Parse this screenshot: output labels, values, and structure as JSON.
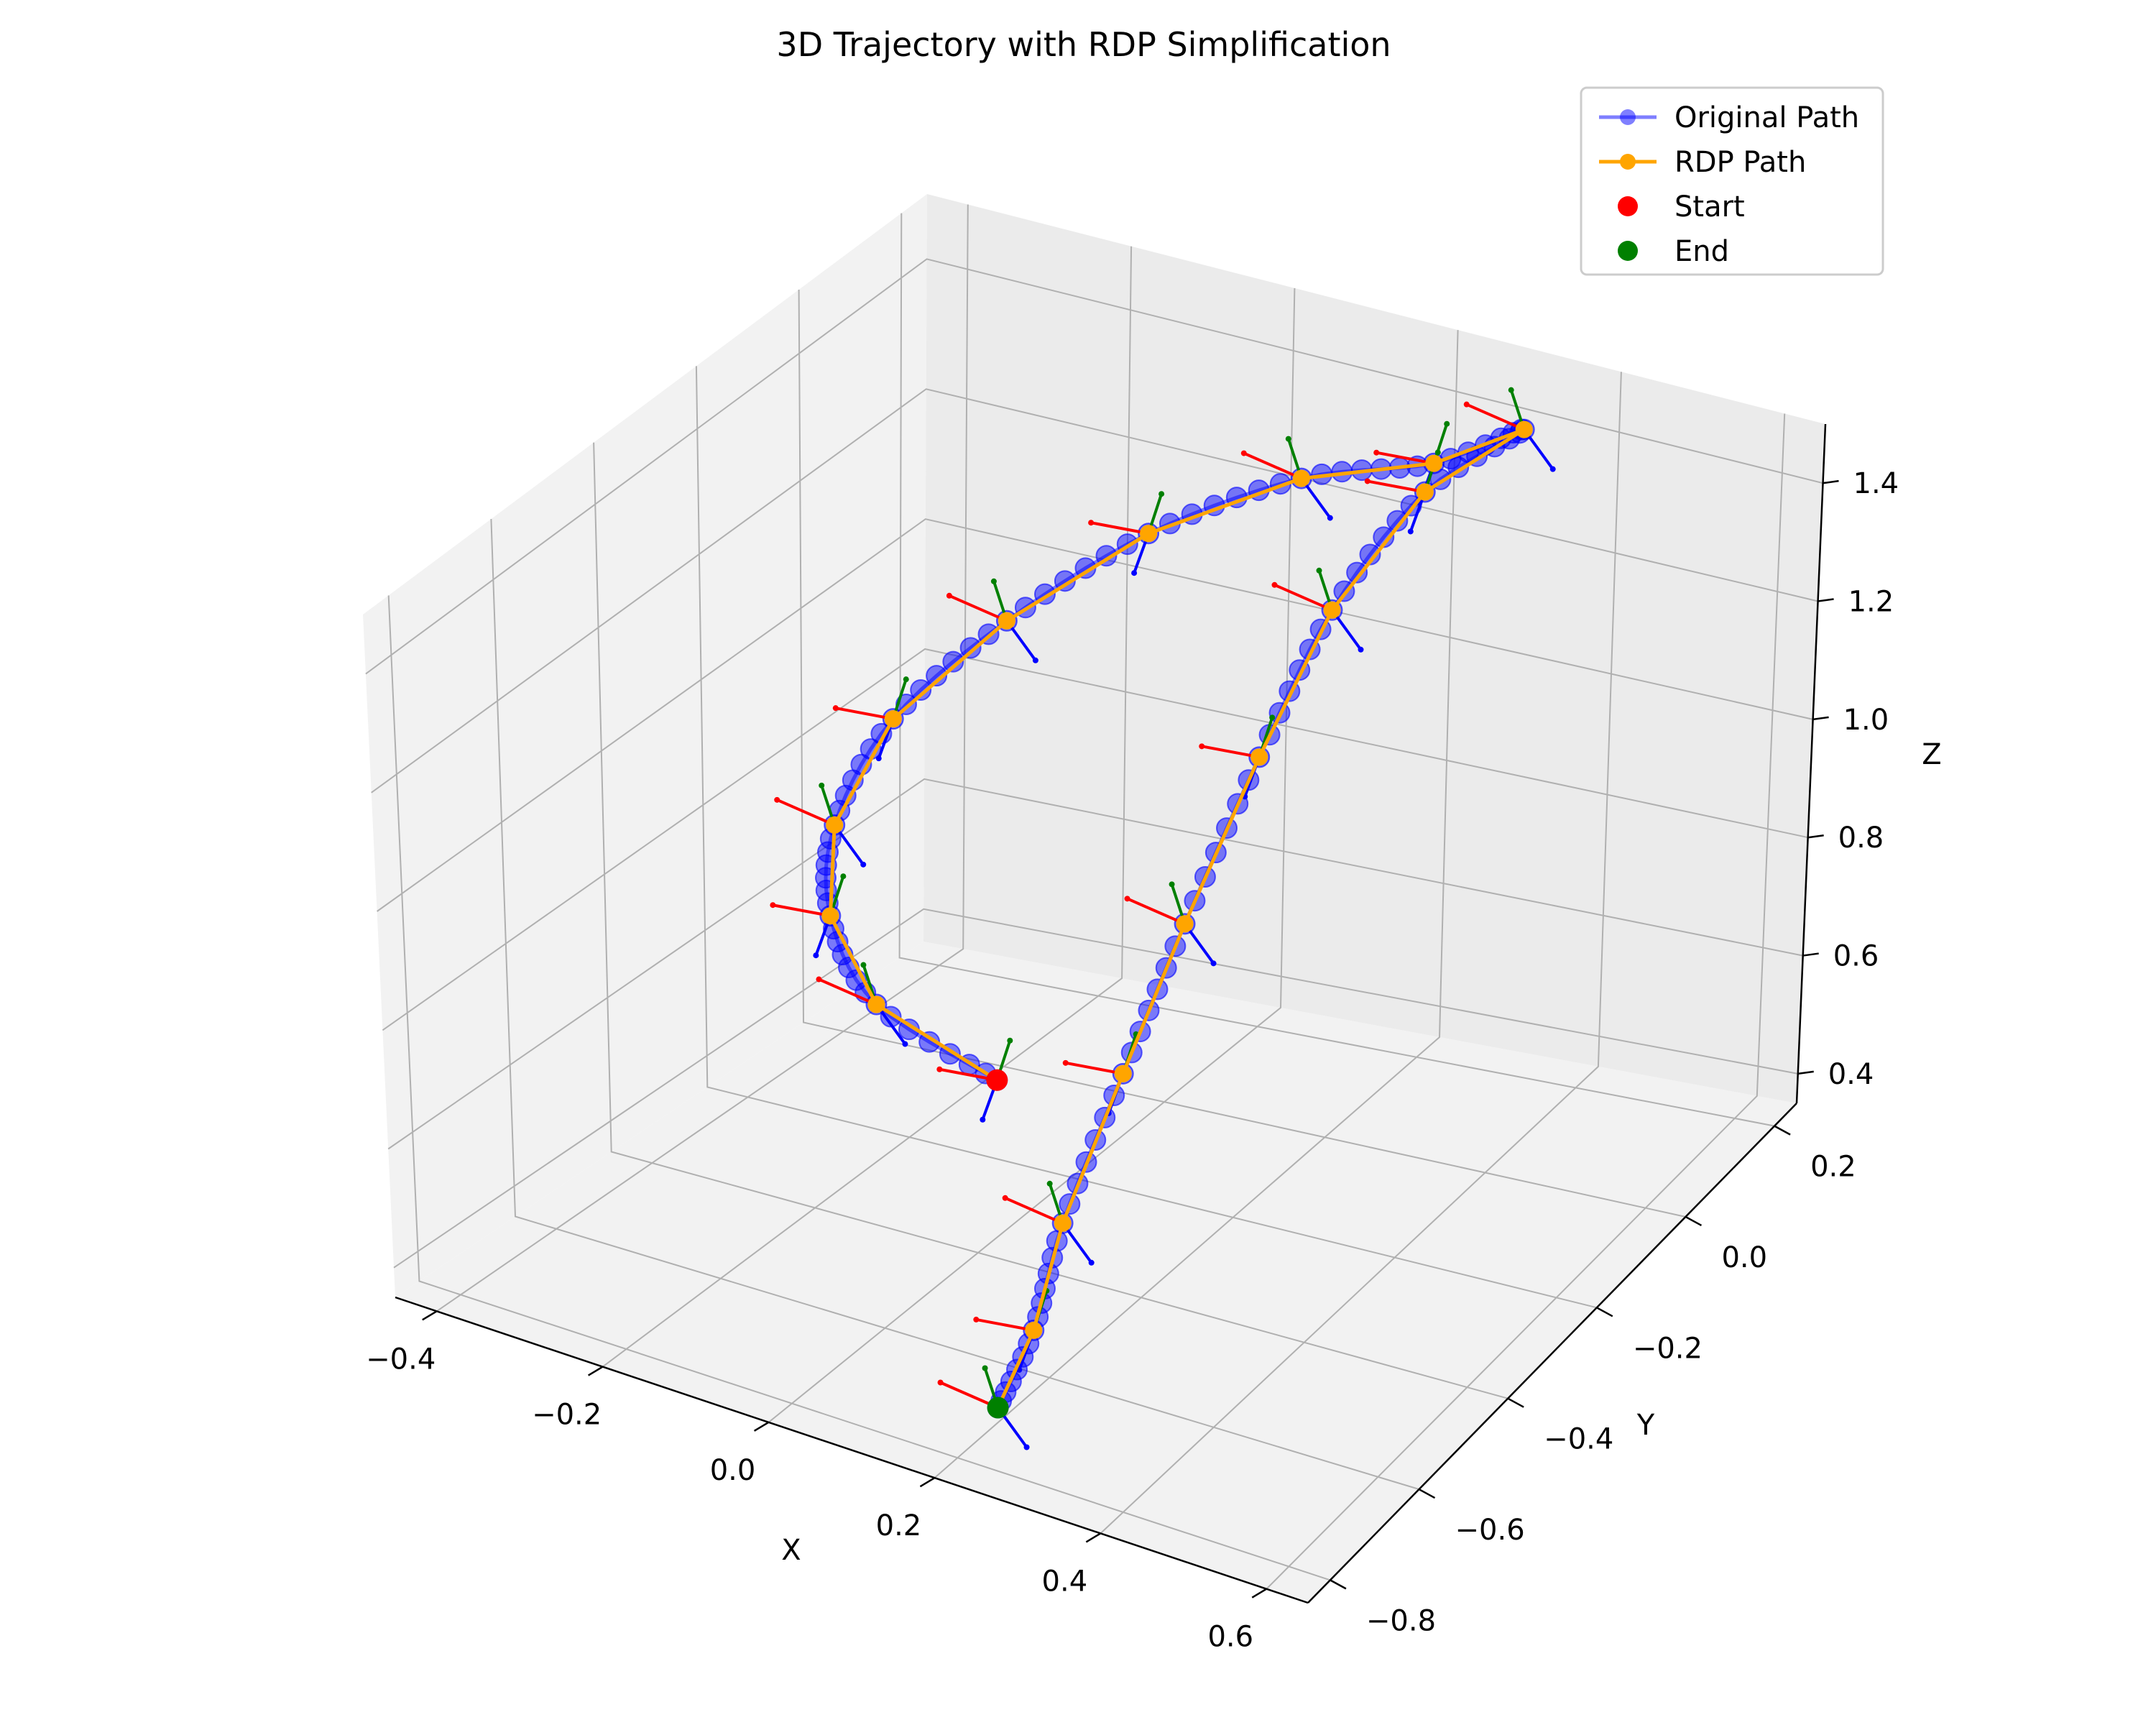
{
  "chart_data": {
    "type": "line3d",
    "title": "3D Trajectory with RDP Simplification",
    "xlabel": "X",
    "ylabel": "Y",
    "zlabel": "Z",
    "xlim": [
      -0.45,
      0.65
    ],
    "ylim": [
      -0.85,
      0.25
    ],
    "zlim": [
      0.35,
      1.5
    ],
    "x_ticks": [
      -0.4,
      -0.2,
      0.0,
      0.2,
      0.4,
      0.6
    ],
    "x_tick_labels": [
      "−0.4",
      "−0.2",
      "0.0",
      "0.2",
      "0.4",
      "0.6"
    ],
    "y_ticks": [
      -0.8,
      -0.6,
      -0.4,
      -0.2,
      0.0,
      0.2
    ],
    "y_tick_labels": [
      "−0.8",
      "−0.6",
      "−0.4",
      "−0.2",
      "0.0",
      "0.2"
    ],
    "z_ticks": [
      0.4,
      0.6,
      0.8,
      1.0,
      1.2,
      1.4
    ],
    "z_tick_labels": [
      "0.4",
      "0.6",
      "0.8",
      "1.0",
      "1.2",
      "1.4"
    ],
    "grid": true,
    "legend_position": "top-right",
    "legend": [
      {
        "label": "Original Path",
        "marker": "line-circle",
        "color": "#0000ff"
      },
      {
        "label": "RDP Path",
        "marker": "line-circle",
        "color": "#ffa500"
      },
      {
        "label": "Start",
        "marker": "circle",
        "color": "#ff0000"
      },
      {
        "label": "End",
        "marker": "circle",
        "color": "#008000"
      }
    ],
    "colors": {
      "original": "#0000ff",
      "rdp": "#ffa500",
      "start": "#ff0000",
      "end": "#008000",
      "frame_x": "#ff0000",
      "frame_y": "#008000",
      "frame_z": "#0000ff"
    },
    "series": [
      {
        "name": "RDP Path",
        "points": [
          [
            -0.15,
            -0.1,
            0.4
          ],
          [
            -0.24,
            -0.2,
            0.55
          ],
          [
            -0.26,
            -0.26,
            0.72
          ],
          [
            -0.23,
            -0.3,
            0.9
          ],
          [
            -0.17,
            -0.28,
            1.08
          ],
          [
            -0.08,
            -0.2,
            1.22
          ],
          [
            0.02,
            -0.08,
            1.32
          ],
          [
            0.14,
            0.03,
            1.38
          ],
          [
            0.26,
            0.1,
            1.4
          ],
          [
            0.34,
            0.15,
            1.45
          ],
          [
            0.25,
            0.1,
            1.35
          ],
          [
            0.18,
            0.03,
            1.18
          ],
          [
            0.14,
            -0.05,
            0.98
          ],
          [
            0.12,
            -0.17,
            0.78
          ],
          [
            0.12,
            -0.3,
            0.62
          ],
          [
            0.16,
            -0.5,
            0.52
          ],
          [
            0.22,
            -0.67,
            0.48
          ],
          [
            0.26,
            -0.82,
            0.47
          ]
        ]
      }
    ],
    "start": [
      -0.15,
      -0.1,
      0.4
    ],
    "end": [
      0.26,
      -0.82,
      0.47
    ]
  }
}
